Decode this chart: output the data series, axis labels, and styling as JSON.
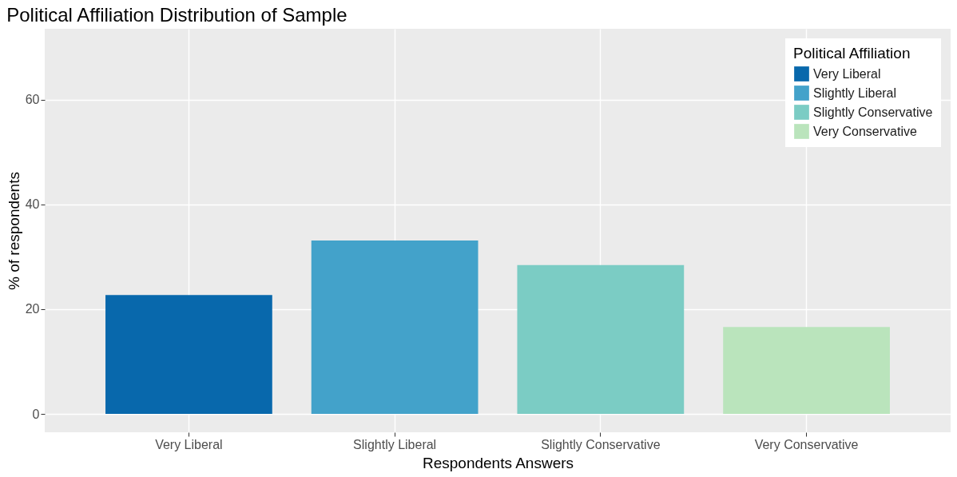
{
  "chart_data": {
    "type": "bar",
    "title": "Political Affiliation Distribution of Sample",
    "xlabel": "Respondents Answers",
    "ylabel": "% of respondents",
    "legend_title": "Political Affiliation",
    "categories": [
      "Very Liberal",
      "Slightly Liberal",
      "Slightly Conservative",
      "Very Conservative"
    ],
    "series": [
      {
        "name": "Very Liberal",
        "color": "#0868ac",
        "values": [
          22.7,
          null,
          null,
          null
        ]
      },
      {
        "name": "Slightly Liberal",
        "color": "#43a2ca",
        "values": [
          null,
          33.1,
          null,
          null
        ]
      },
      {
        "name": "Slightly Conservative",
        "color": "#7bccc4",
        "values": [
          null,
          null,
          28.4,
          null
        ]
      },
      {
        "name": "Very Conservative",
        "color": "#bae4bc",
        "values": [
          null,
          null,
          null,
          16.6
        ]
      }
    ],
    "ylim": [
      -3.5,
      73.5
    ],
    "yticks": [
      0,
      20,
      40,
      60
    ],
    "grid": true,
    "legend": "top right"
  }
}
